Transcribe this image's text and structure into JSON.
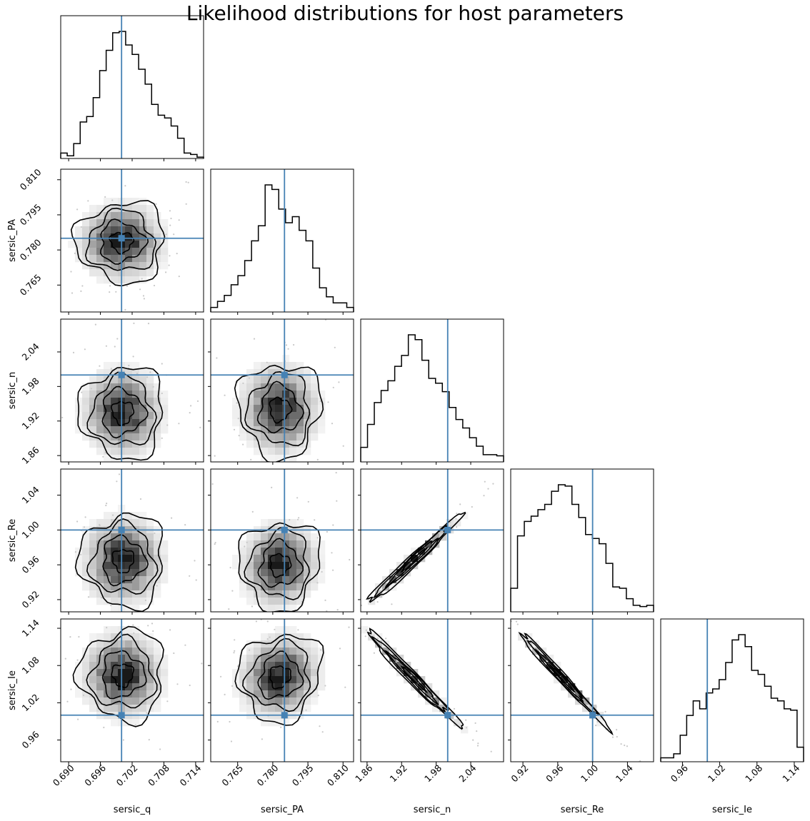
{
  "title": "Likelihood distributions for host parameters",
  "colors": {
    "truth": "#4682b4",
    "contour": "#000000",
    "frame": "#000000"
  },
  "chart_data": {
    "type": "corner",
    "parameters": [
      {
        "name": "sersic_q",
        "range": [
          0.6885,
          0.7155
        ],
        "ticks": [
          "0.690",
          "0.696",
          "0.702",
          "0.708",
          "0.714"
        ],
        "truth": 0.7,
        "hist": [
          4,
          2,
          11,
          27,
          31,
          45,
          65,
          80,
          93,
          94,
          84,
          77,
          66,
          55,
          40,
          32,
          30,
          24,
          15,
          4,
          3,
          1
        ]
      },
      {
        "name": "sersic_PA",
        "range": [
          0.7535,
          0.8145
        ],
        "ticks": [
          "0.765",
          "0.780",
          "0.795",
          "0.810"
        ],
        "truth": 0.785,
        "hist": [
          3,
          7,
          11,
          18,
          24,
          34,
          47,
          57,
          84,
          81,
          68,
          59,
          63,
          54,
          47,
          29,
          16,
          10,
          6,
          6,
          3
        ]
      },
      {
        "name": "sersic_n",
        "range": [
          1.849,
          2.097
        ],
        "ticks": [
          "1.86",
          "1.92",
          "1.98",
          "2.04"
        ],
        "truth": 2.0,
        "hist": [
          12,
          31,
          49,
          59,
          67,
          79,
          88,
          105,
          101,
          84,
          69,
          65,
          58,
          45,
          35,
          28,
          20,
          13,
          6,
          6,
          5
        ]
      },
      {
        "name": "sersic_Re",
        "range": [
          0.906,
          1.07
        ],
        "ticks": [
          "0.92",
          "0.96",
          "1.00",
          "1.04"
        ],
        "truth": 1.0,
        "hist": [
          18,
          58,
          69,
          73,
          78,
          82,
          92,
          97,
          96,
          82,
          72,
          59,
          56,
          52,
          37,
          19,
          18,
          10,
          5,
          4,
          5
        ]
      },
      {
        "name": "sersic_Ie",
        "range": [
          0.925,
          1.155
        ],
        "ticks": [
          "0.96",
          "1.02",
          "1.08",
          "1.14"
        ],
        "truth": 1.0,
        "hist": [
          3,
          3,
          6,
          20,
          35,
          46,
          40,
          52,
          55,
          62,
          75,
          92,
          96,
          87,
          69,
          66,
          57,
          48,
          46,
          40,
          39,
          11
        ]
      }
    ],
    "blobs": [
      {
        "x": 0,
        "y": 1,
        "mean": [
          0.7,
          0.7834
        ],
        "sd": [
          0.0038,
          0.0078
        ],
        "rho": 0.0
      },
      {
        "x": 0,
        "y": 2,
        "mean": [
          0.7002,
          1.935
        ],
        "sd": [
          0.0036,
          0.036
        ],
        "rho": 0.0
      },
      {
        "x": 1,
        "y": 2,
        "mean": [
          0.783,
          1.94
        ],
        "sd": [
          0.008,
          0.037
        ],
        "rho": 0.0
      },
      {
        "x": 0,
        "y": 3,
        "mean": [
          0.7003,
          0.965
        ],
        "sd": [
          0.0036,
          0.024
        ],
        "rho": 0.0
      },
      {
        "x": 1,
        "y": 3,
        "mean": [
          0.783,
          0.96
        ],
        "sd": [
          0.0078,
          0.023
        ],
        "rho": 0.05
      },
      {
        "x": 2,
        "y": 3,
        "mean": [
          1.94,
          0.965
        ],
        "sd": [
          0.037,
          0.023
        ],
        "rho": 0.985
      },
      {
        "x": 0,
        "y": 4,
        "mean": [
          0.7002,
          1.065
        ],
        "sd": [
          0.0036,
          0.033
        ],
        "rho": 0.0
      },
      {
        "x": 1,
        "y": 4,
        "mean": [
          0.783,
          1.062
        ],
        "sd": [
          0.008,
          0.032
        ],
        "rho": 0.1
      },
      {
        "x": 2,
        "y": 4,
        "mean": [
          1.94,
          1.06
        ],
        "sd": [
          0.037,
          0.035
        ],
        "rho": -0.985
      },
      {
        "x": 3,
        "y": 4,
        "mean": [
          0.965,
          1.06
        ],
        "sd": [
          0.023,
          0.035
        ],
        "rho": -0.99
      }
    ]
  }
}
